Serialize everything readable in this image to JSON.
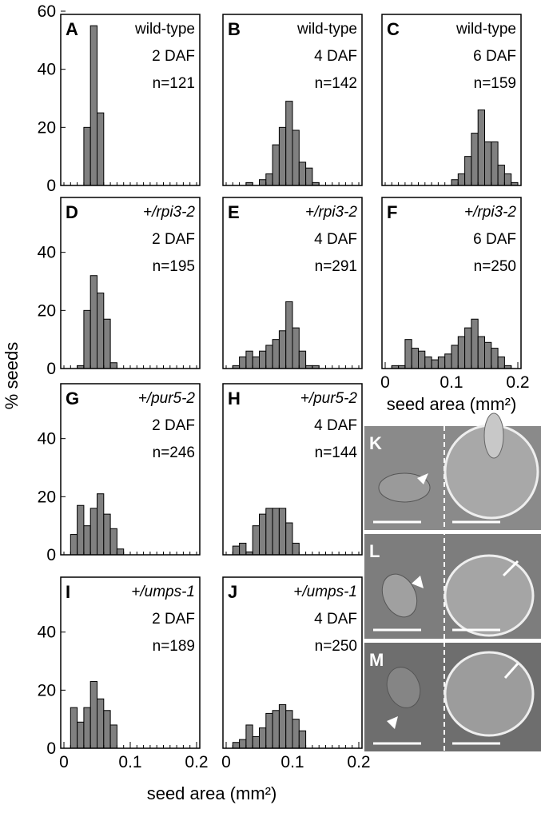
{
  "figure": {
    "ylabel": "% seeds",
    "xlabel": "seed area (mm²)"
  },
  "chart_data": [
    {
      "type": "histogram",
      "label": "A",
      "genotype": "wild-type",
      "stage": "2 DAF",
      "n": "n=121",
      "color": "#808080",
      "bins": [
        0,
        0.01,
        0.02,
        0.03,
        0.04,
        0.05,
        0.06,
        0.07,
        0.08,
        0.09,
        0.1,
        0.11,
        0.12,
        0.13,
        0.14,
        0.15,
        0.16,
        0.17,
        0.18,
        0.19,
        0.2
      ],
      "values": [
        0,
        0,
        0,
        20,
        55,
        25,
        0,
        0,
        0,
        0,
        0,
        0,
        0,
        0,
        0,
        0,
        0,
        0,
        0,
        0
      ],
      "xlim": [
        0,
        0.2
      ],
      "ylim": [
        0,
        60
      ],
      "yticks": [
        0,
        20,
        40,
        60
      ]
    },
    {
      "type": "histogram",
      "label": "B",
      "genotype": "wild-type",
      "stage": "4 DAF",
      "n": "n=142",
      "color": "#808080",
      "bins": [
        0,
        0.01,
        0.02,
        0.03,
        0.04,
        0.05,
        0.06,
        0.07,
        0.08,
        0.09,
        0.1,
        0.11,
        0.12,
        0.13,
        0.14,
        0.15,
        0.16,
        0.17,
        0.18,
        0.19,
        0.2
      ],
      "values": [
        0,
        0,
        0,
        1,
        0,
        2,
        4,
        14,
        20,
        29,
        19,
        8,
        6,
        1,
        0,
        0,
        0,
        0,
        0,
        0
      ],
      "xlim": [
        0,
        0.2
      ],
      "ylim": [
        0,
        60
      ]
    },
    {
      "type": "histogram",
      "label": "C",
      "genotype": "wild-type",
      "stage": "6 DAF",
      "n": "n=159",
      "color": "#808080",
      "bins": [
        0,
        0.01,
        0.02,
        0.03,
        0.04,
        0.05,
        0.06,
        0.07,
        0.08,
        0.09,
        0.1,
        0.11,
        0.12,
        0.13,
        0.14,
        0.15,
        0.16,
        0.17,
        0.18,
        0.19,
        0.2
      ],
      "values": [
        0,
        0,
        0,
        0,
        0,
        0,
        0,
        0,
        0,
        0,
        2,
        4,
        10,
        18,
        26,
        15,
        15,
        7,
        4,
        1
      ],
      "xlim": [
        0,
        0.2
      ],
      "ylim": [
        0,
        60
      ]
    },
    {
      "type": "histogram",
      "label": "D",
      "genotype": "+/rpi3-2",
      "stage": "2 DAF",
      "n": "n=195",
      "color": "#808080",
      "bins": [
        0,
        0.01,
        0.02,
        0.03,
        0.04,
        0.05,
        0.06,
        0.07,
        0.08,
        0.09,
        0.1,
        0.11,
        0.12,
        0.13,
        0.14,
        0.15,
        0.16,
        0.17,
        0.18,
        0.19,
        0.2
      ],
      "values": [
        0,
        0,
        1,
        20,
        32,
        26,
        17,
        2,
        0,
        0,
        0,
        0,
        0,
        0,
        0,
        0,
        0,
        0,
        0,
        0
      ],
      "xlim": [
        0,
        0.2
      ],
      "ylim": [
        0,
        60
      ],
      "yticks": [
        0,
        20,
        40
      ]
    },
    {
      "type": "histogram",
      "label": "E",
      "genotype": "+/rpi3-2",
      "stage": "4 DAF",
      "n": "n=291",
      "color": "#808080",
      "bins": [
        0,
        0.01,
        0.02,
        0.03,
        0.04,
        0.05,
        0.06,
        0.07,
        0.08,
        0.09,
        0.1,
        0.11,
        0.12,
        0.13,
        0.14,
        0.15,
        0.16,
        0.17,
        0.18,
        0.19,
        0.2
      ],
      "values": [
        0,
        1,
        4,
        6,
        4,
        6,
        8,
        10,
        13,
        23,
        14,
        6,
        1,
        1,
        0,
        0,
        0,
        0,
        0,
        0
      ],
      "xlim": [
        0,
        0.2
      ],
      "ylim": [
        0,
        60
      ]
    },
    {
      "type": "histogram",
      "label": "F",
      "genotype": "+/rpi3-2",
      "stage": "6 DAF",
      "n": "n=250",
      "color": "#808080",
      "bins": [
        0,
        0.01,
        0.02,
        0.03,
        0.04,
        0.05,
        0.06,
        0.07,
        0.08,
        0.09,
        0.1,
        0.11,
        0.12,
        0.13,
        0.14,
        0.15,
        0.16,
        0.17,
        0.18,
        0.19,
        0.2
      ],
      "values": [
        0,
        1,
        1,
        10,
        7,
        6,
        4,
        3,
        4,
        5,
        8,
        11,
        14,
        17,
        11,
        9,
        7,
        4,
        1,
        0
      ],
      "xlim": [
        0,
        0.2
      ],
      "ylim": [
        0,
        60
      ],
      "xticks": [
        0,
        0.1,
        0.2
      ],
      "xlabel": "seed area (mm²)"
    },
    {
      "type": "histogram",
      "label": "G",
      "genotype": "+/pur5-2",
      "stage": "2 DAF",
      "n": "n=246",
      "color": "#808080",
      "bins": [
        0,
        0.01,
        0.02,
        0.03,
        0.04,
        0.05,
        0.06,
        0.07,
        0.08,
        0.09,
        0.1,
        0.11,
        0.12,
        0.13,
        0.14,
        0.15,
        0.16,
        0.17,
        0.18,
        0.19,
        0.2
      ],
      "values": [
        0,
        7,
        17,
        10,
        16,
        21,
        14,
        9,
        2,
        0,
        0,
        0,
        0,
        0,
        0,
        0,
        0,
        0,
        0,
        0
      ],
      "xlim": [
        0,
        0.2
      ],
      "ylim": [
        0,
        60
      ],
      "yticks": [
        0,
        20,
        40
      ]
    },
    {
      "type": "histogram",
      "label": "H",
      "genotype": "+/pur5-2",
      "stage": "4 DAF",
      "n": "n=144",
      "color": "#808080",
      "bins": [
        0,
        0.01,
        0.02,
        0.03,
        0.04,
        0.05,
        0.06,
        0.07,
        0.08,
        0.09,
        0.1,
        0.11,
        0.12,
        0.13,
        0.14,
        0.15,
        0.16,
        0.17,
        0.18,
        0.19,
        0.2
      ],
      "values": [
        0,
        3,
        4,
        1,
        10,
        14,
        16,
        16,
        16,
        11,
        4,
        0,
        0,
        0,
        0,
        0,
        0,
        0,
        0,
        0
      ],
      "xlim": [
        0,
        0.2
      ],
      "ylim": [
        0,
        60
      ]
    },
    {
      "type": "histogram",
      "label": "I",
      "genotype": "+/umps-1",
      "stage": "2 DAF",
      "n": "n=189",
      "color": "#808080",
      "bins": [
        0,
        0.01,
        0.02,
        0.03,
        0.04,
        0.05,
        0.06,
        0.07,
        0.08,
        0.09,
        0.1,
        0.11,
        0.12,
        0.13,
        0.14,
        0.15,
        0.16,
        0.17,
        0.18,
        0.19,
        0.2
      ],
      "values": [
        0,
        14,
        9,
        14,
        23,
        17,
        13,
        8,
        0,
        0,
        0,
        0,
        0,
        0,
        0,
        0,
        0,
        0,
        0,
        0
      ],
      "xlim": [
        0,
        0.2
      ],
      "ylim": [
        0,
        60
      ],
      "yticks": [
        0,
        20,
        40
      ],
      "xticks": [
        0,
        0.1,
        0.2
      ]
    },
    {
      "type": "histogram",
      "label": "J",
      "genotype": "+/umps-1",
      "stage": "4 DAF",
      "n": "n=250",
      "color": "#808080",
      "bins": [
        0,
        0.01,
        0.02,
        0.03,
        0.04,
        0.05,
        0.06,
        0.07,
        0.08,
        0.09,
        0.1,
        0.11,
        0.12,
        0.13,
        0.14,
        0.15,
        0.16,
        0.17,
        0.18,
        0.19,
        0.2
      ],
      "values": [
        0,
        2,
        3,
        8,
        4,
        7,
        12,
        13,
        15,
        13,
        10,
        6,
        0,
        0,
        0,
        0,
        0,
        0,
        0,
        0
      ],
      "xlim": [
        0,
        0.2
      ],
      "ylim": [
        0,
        60
      ],
      "xticks": [
        0,
        0.1,
        0.2
      ]
    }
  ],
  "images": [
    {
      "label": "K"
    },
    {
      "label": "L"
    },
    {
      "label": "M"
    }
  ]
}
